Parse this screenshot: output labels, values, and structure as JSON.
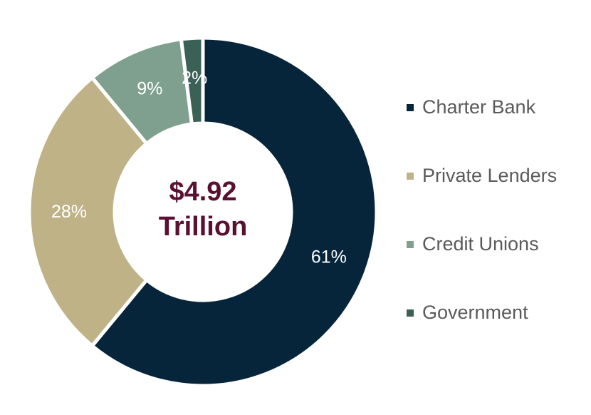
{
  "chart_data": {
    "type": "pie",
    "donut": true,
    "center_text": [
      "$4.92",
      "Trillion"
    ],
    "categories": [
      "Charter Bank",
      "Private Lenders",
      "Credit Unions",
      "Government"
    ],
    "values": [
      61,
      28,
      9,
      2
    ],
    "data_labels": [
      "61%",
      "28%",
      "9%",
      "2%"
    ],
    "colors": [
      "#06253b",
      "#bfb286",
      "#7fa08e",
      "#3b6156"
    ],
    "legend_position": "right",
    "start_angle_degrees": 0,
    "direction": "clockwise"
  },
  "legend": {
    "items": [
      {
        "label": "Charter Bank",
        "color": "#06253b"
      },
      {
        "label": "Private Lenders",
        "color": "#bfb286"
      },
      {
        "label": "Credit Unions",
        "color": "#7fa08e"
      },
      {
        "label": "Government",
        "color": "#3b6156"
      }
    ]
  }
}
